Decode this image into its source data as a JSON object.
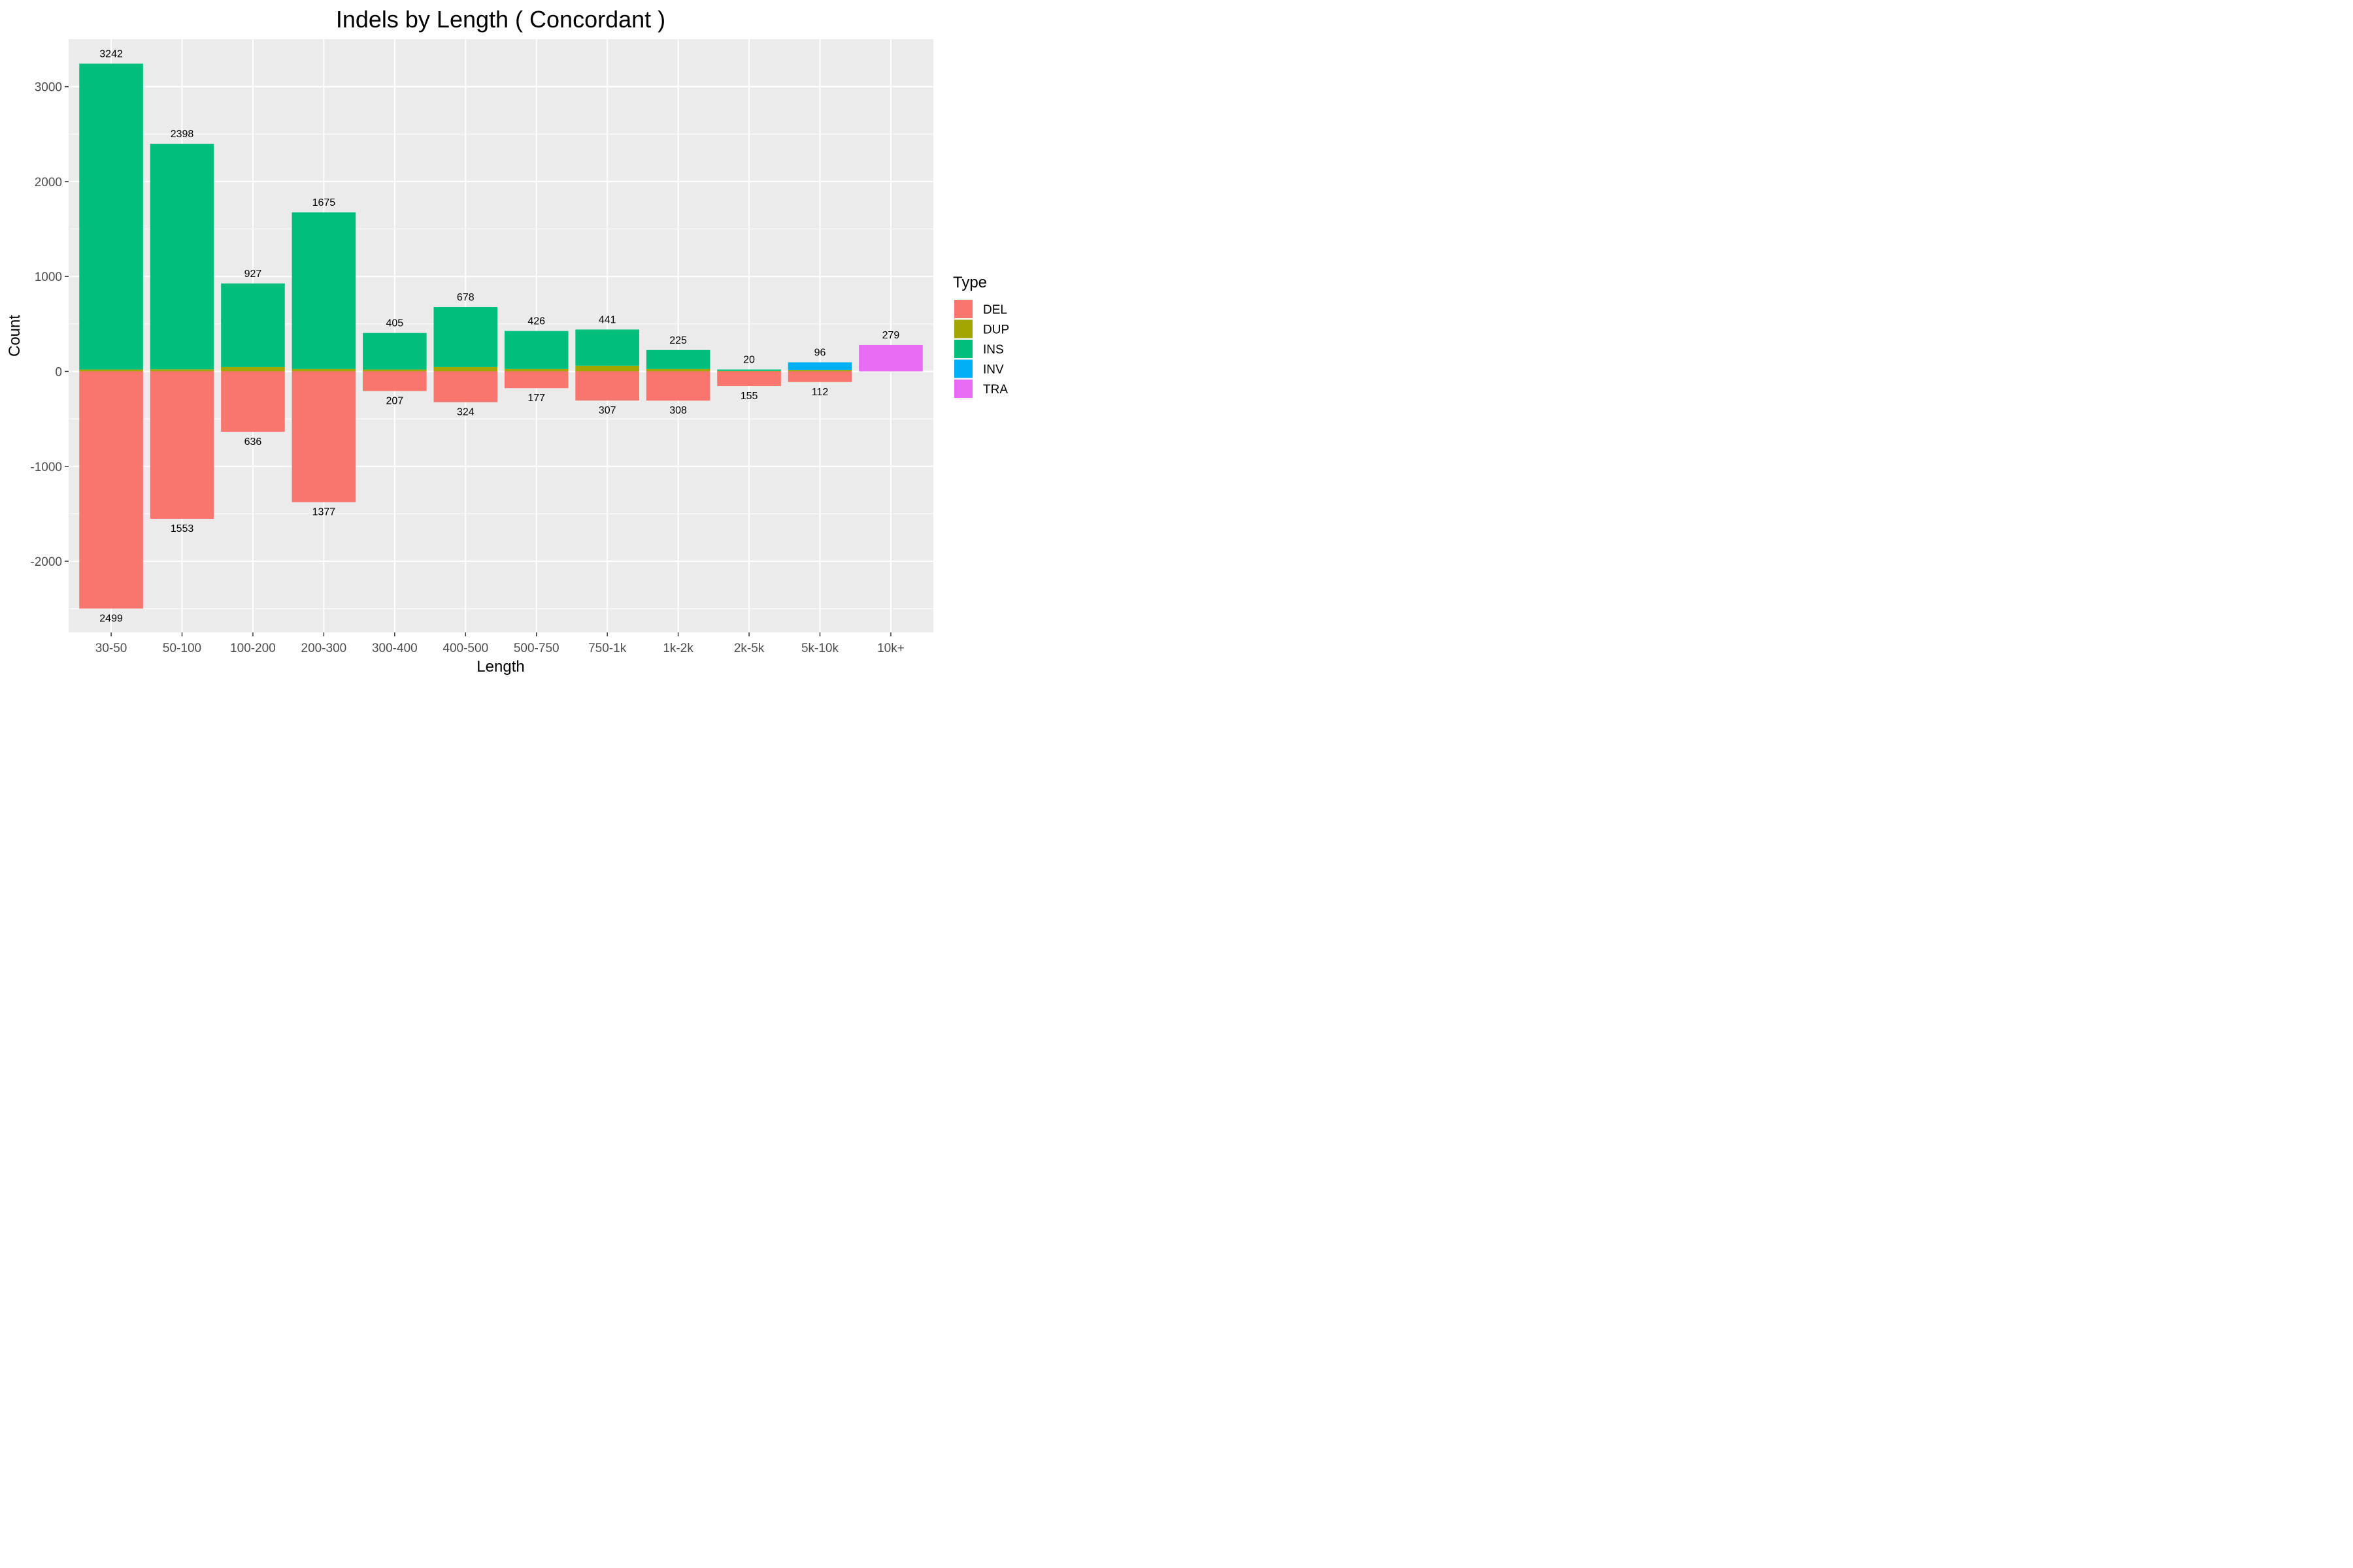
{
  "chart_data": {
    "type": "bar",
    "stacked": true,
    "title": "Indels by Length ( Concordant )",
    "xlabel": "Length",
    "ylabel": "Count",
    "ylim": [
      -2750,
      3500
    ],
    "yticks": [
      -2000,
      -1000,
      0,
      1000,
      2000,
      3000
    ],
    "grid": true,
    "legend": {
      "title": "Type",
      "position": "right"
    },
    "categories": [
      "30-50",
      "50-100",
      "100-200",
      "200-300",
      "300-400",
      "400-500",
      "500-750",
      "750-1k",
      "1k-2k",
      "2k-5k",
      "5k-10k",
      "10k+"
    ],
    "series": [
      {
        "name": "DEL",
        "color": "#F8766D",
        "values": [
          -2499,
          -1553,
          -636,
          -1377,
          -207,
          -324,
          -177,
          -307,
          -308,
          -155,
          -112,
          0
        ]
      },
      {
        "name": "DUP",
        "color": "#A3A500",
        "values": [
          20,
          22,
          45,
          25,
          20,
          45,
          25,
          60,
          25,
          5,
          16,
          0
        ]
      },
      {
        "name": "INS",
        "color": "#00BF7D",
        "values": [
          3222,
          2376,
          882,
          1650,
          385,
          633,
          401,
          381,
          200,
          15,
          0,
          0
        ]
      },
      {
        "name": "INV",
        "color": "#00B0F6",
        "values": [
          0,
          0,
          0,
          0,
          0,
          0,
          0,
          0,
          0,
          0,
          80,
          0
        ]
      },
      {
        "name": "TRA",
        "color": "#E76BF3",
        "values": [
          0,
          0,
          0,
          0,
          0,
          0,
          0,
          0,
          0,
          0,
          0,
          279
        ]
      }
    ],
    "top_labels": [
      "3242",
      "2398",
      "927",
      "1675",
      "405",
      "678",
      "426",
      "441",
      "225",
      "20",
      "96",
      "279"
    ],
    "bottom_labels": [
      "2499",
      "1553",
      "636",
      "1377",
      "207",
      "324",
      "177",
      "307",
      "308",
      "155",
      "112",
      ""
    ]
  }
}
